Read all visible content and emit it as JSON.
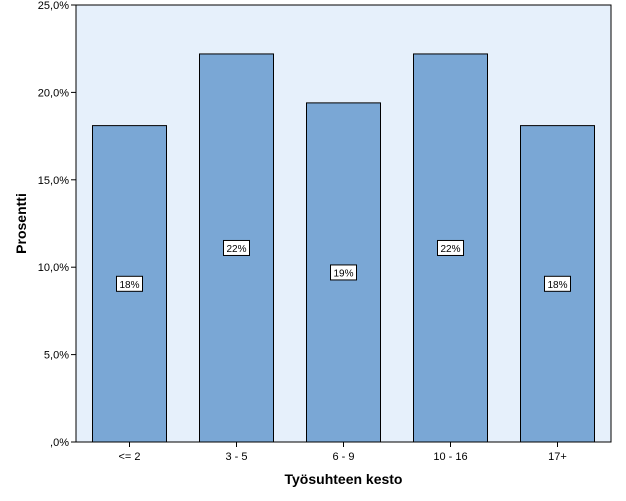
{
  "chart_data": {
    "type": "bar",
    "title": "",
    "xlabel": "Työsuhteen kesto",
    "ylabel": "Prosentti",
    "categories": [
      "<= 2",
      "3 - 5",
      "6 - 9",
      "10 - 16",
      "17+"
    ],
    "values": [
      18.1,
      22.2,
      19.4,
      22.2,
      18.1
    ],
    "data_labels": [
      "18%",
      "22%",
      "19%",
      "22%",
      "18%"
    ],
    "ylim": [
      0,
      25
    ],
    "yticks": [
      0,
      5,
      10,
      15,
      20,
      25
    ],
    "ytick_labels": [
      ",0%",
      "5,0%",
      "10,0%",
      "15,0%",
      "20,0%",
      "25,0%"
    ],
    "grid": false,
    "legend": "none",
    "colors": {
      "plot_background": "#e6f0fb",
      "bar_fill": "#7aa7d5",
      "bar_stroke": "#000000"
    }
  }
}
